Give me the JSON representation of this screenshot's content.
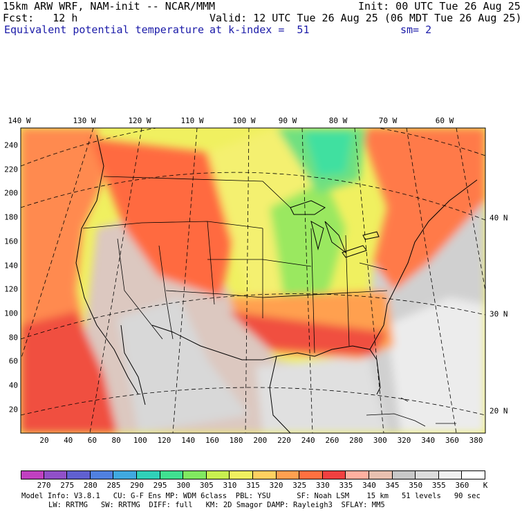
{
  "header": {
    "model": "15km ARW WRF, NAM-init -- NCAR/MMM",
    "init": "Init: 00 UTC Tue 26 Aug 25",
    "fcst": "Fcst:   12 h",
    "valid": "Valid: 12 UTC Tue 26 Aug 25 (06 MDT Tue 26 Aug 25)",
    "field": "Equivalent potential temperature",
    "level": "at k-index =  51",
    "smooth": "sm= 2"
  },
  "longitudes": [
    "140 W",
    "130 W",
    "120 W",
    "110 W",
    "100 W",
    "90 W",
    "80 W",
    "70 W",
    "60 W"
  ],
  "latitudes": [
    "40 N",
    "30 N",
    "20 N"
  ],
  "y_ticks": [
    "240",
    "220",
    "200",
    "180",
    "160",
    "140",
    "120",
    "100",
    "80",
    "60",
    "40",
    "20"
  ],
  "x_ticks": [
    "20",
    "40",
    "60",
    "80",
    "100",
    "120",
    "140",
    "160",
    "180",
    "200",
    "220",
    "240",
    "260",
    "280",
    "300",
    "320",
    "340",
    "360",
    "380"
  ],
  "colorbar": {
    "labels": [
      "270",
      "275",
      "280",
      "285",
      "290",
      "295",
      "300",
      "305",
      "310",
      "315",
      "320",
      "325",
      "330",
      "335",
      "340",
      "345",
      "350",
      "355",
      "360"
    ],
    "unit": "K",
    "colors": [
      "#c040c0",
      "#9050c8",
      "#6060d0",
      "#5080e0",
      "#40a8e0",
      "#30d0b8",
      "#40e090",
      "#80e860",
      "#c8f050",
      "#f0f060",
      "#ffd060",
      "#ffa050",
      "#ff7040",
      "#f04040",
      "#ffb0a0",
      "#e8c0b0",
      "#c8c8c8",
      "#dcdcdc",
      "#f0f0f0",
      "#ffffff"
    ]
  },
  "footer": {
    "line1": "Model Info: V3.8.1   CU: G-F Ens MP: WDM 6class  PBL: YSU      SF: Noah LSM    15 km   51 levels   90 sec",
    "line2": "LW: RRTMG   SW: RRTMG  DIFF: full   KM: 2D Smagor DAMP: Rayleigh3  SFLAY: MM5"
  }
}
